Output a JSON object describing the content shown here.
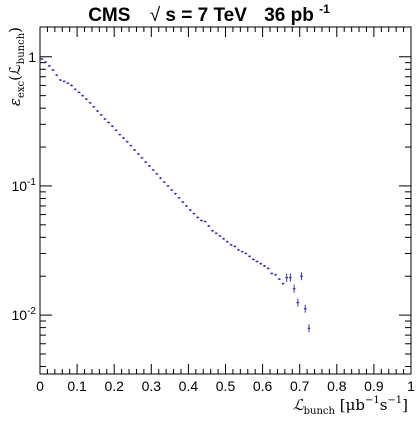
{
  "chart_data": {
    "type": "scatter",
    "title": {
      "experiment": "CMS",
      "energy": "s = 7 TeV",
      "luminosity": "36 pb",
      "luminosity_exponent": "-1"
    },
    "xlabel": {
      "main": "ℒ",
      "sub": "bunch",
      "units": " [μb",
      "exp1": "−1",
      "s": "s",
      "exp2": "−1",
      "close": "]"
    },
    "ylabel": {
      "eps": "ε",
      "sub": "exc",
      "arg": "(ℒ",
      "argsub": "bunch",
      "close": ")"
    },
    "xlim": [
      0,
      1
    ],
    "ylim": [
      0.0035,
      1.7
    ],
    "yscale": "log",
    "x_ticks": [
      "0",
      "0.1",
      "0.2",
      "0.3",
      "0.4",
      "0.5",
      "0.6",
      "0.7",
      "0.8",
      "0.9",
      "1"
    ],
    "y_ticks": [
      {
        "base": "1",
        "exp": ""
      },
      {
        "base": "10",
        "exp": "-1"
      },
      {
        "base": "10",
        "exp": "-2"
      }
    ],
    "grid": false,
    "marker_color": "#3333bb",
    "points": [
      {
        "x": 0.005,
        "y": 0.96
      },
      {
        "x": 0.015,
        "y": 0.91
      },
      {
        "x": 0.025,
        "y": 0.85
      },
      {
        "x": 0.035,
        "y": 0.79
      },
      {
        "x": 0.045,
        "y": 0.72
      },
      {
        "x": 0.055,
        "y": 0.66
      },
      {
        "x": 0.065,
        "y": 0.645
      },
      {
        "x": 0.075,
        "y": 0.625
      },
      {
        "x": 0.085,
        "y": 0.6
      },
      {
        "x": 0.095,
        "y": 0.56
      },
      {
        "x": 0.105,
        "y": 0.53
      },
      {
        "x": 0.115,
        "y": 0.5
      },
      {
        "x": 0.125,
        "y": 0.47
      },
      {
        "x": 0.135,
        "y": 0.44
      },
      {
        "x": 0.145,
        "y": 0.41
      },
      {
        "x": 0.155,
        "y": 0.38
      },
      {
        "x": 0.165,
        "y": 0.355
      },
      {
        "x": 0.175,
        "y": 0.33
      },
      {
        "x": 0.185,
        "y": 0.31
      },
      {
        "x": 0.195,
        "y": 0.29
      },
      {
        "x": 0.205,
        "y": 0.27
      },
      {
        "x": 0.215,
        "y": 0.25
      },
      {
        "x": 0.225,
        "y": 0.235
      },
      {
        "x": 0.235,
        "y": 0.22
      },
      {
        "x": 0.245,
        "y": 0.205
      },
      {
        "x": 0.255,
        "y": 0.19
      },
      {
        "x": 0.265,
        "y": 0.177
      },
      {
        "x": 0.275,
        "y": 0.165
      },
      {
        "x": 0.285,
        "y": 0.153
      },
      {
        "x": 0.295,
        "y": 0.143
      },
      {
        "x": 0.305,
        "y": 0.133
      },
      {
        "x": 0.315,
        "y": 0.124
      },
      {
        "x": 0.325,
        "y": 0.115
      },
      {
        "x": 0.335,
        "y": 0.107
      },
      {
        "x": 0.345,
        "y": 0.1
      },
      {
        "x": 0.355,
        "y": 0.093
      },
      {
        "x": 0.365,
        "y": 0.087
      },
      {
        "x": 0.375,
        "y": 0.081
      },
      {
        "x": 0.385,
        "y": 0.075
      },
      {
        "x": 0.395,
        "y": 0.07
      },
      {
        "x": 0.405,
        "y": 0.065
      },
      {
        "x": 0.415,
        "y": 0.061
      },
      {
        "x": 0.425,
        "y": 0.057
      },
      {
        "x": 0.435,
        "y": 0.054
      },
      {
        "x": 0.445,
        "y": 0.053
      },
      {
        "x": 0.455,
        "y": 0.049
      },
      {
        "x": 0.465,
        "y": 0.045
      },
      {
        "x": 0.475,
        "y": 0.043
      },
      {
        "x": 0.485,
        "y": 0.041
      },
      {
        "x": 0.495,
        "y": 0.039
      },
      {
        "x": 0.505,
        "y": 0.037
      },
      {
        "x": 0.515,
        "y": 0.035
      },
      {
        "x": 0.525,
        "y": 0.034
      },
      {
        "x": 0.535,
        "y": 0.032
      },
      {
        "x": 0.545,
        "y": 0.031
      },
      {
        "x": 0.555,
        "y": 0.03
      },
      {
        "x": 0.565,
        "y": 0.0285
      },
      {
        "x": 0.575,
        "y": 0.027
      },
      {
        "x": 0.585,
        "y": 0.026
      },
      {
        "x": 0.595,
        "y": 0.025
      },
      {
        "x": 0.605,
        "y": 0.024
      },
      {
        "x": 0.615,
        "y": 0.023
      },
      {
        "x": 0.625,
        "y": 0.021
      },
      {
        "x": 0.635,
        "y": 0.0205
      },
      {
        "x": 0.645,
        "y": 0.019
      },
      {
        "x": 0.655,
        "y": 0.0175
      },
      {
        "x": 0.665,
        "y": 0.0195
      },
      {
        "x": 0.675,
        "y": 0.0195
      },
      {
        "x": 0.685,
        "y": 0.016
      },
      {
        "x": 0.695,
        "y": 0.0125
      },
      {
        "x": 0.705,
        "y": 0.02
      },
      {
        "x": 0.715,
        "y": 0.0112
      },
      {
        "x": 0.725,
        "y": 0.0079
      }
    ]
  }
}
